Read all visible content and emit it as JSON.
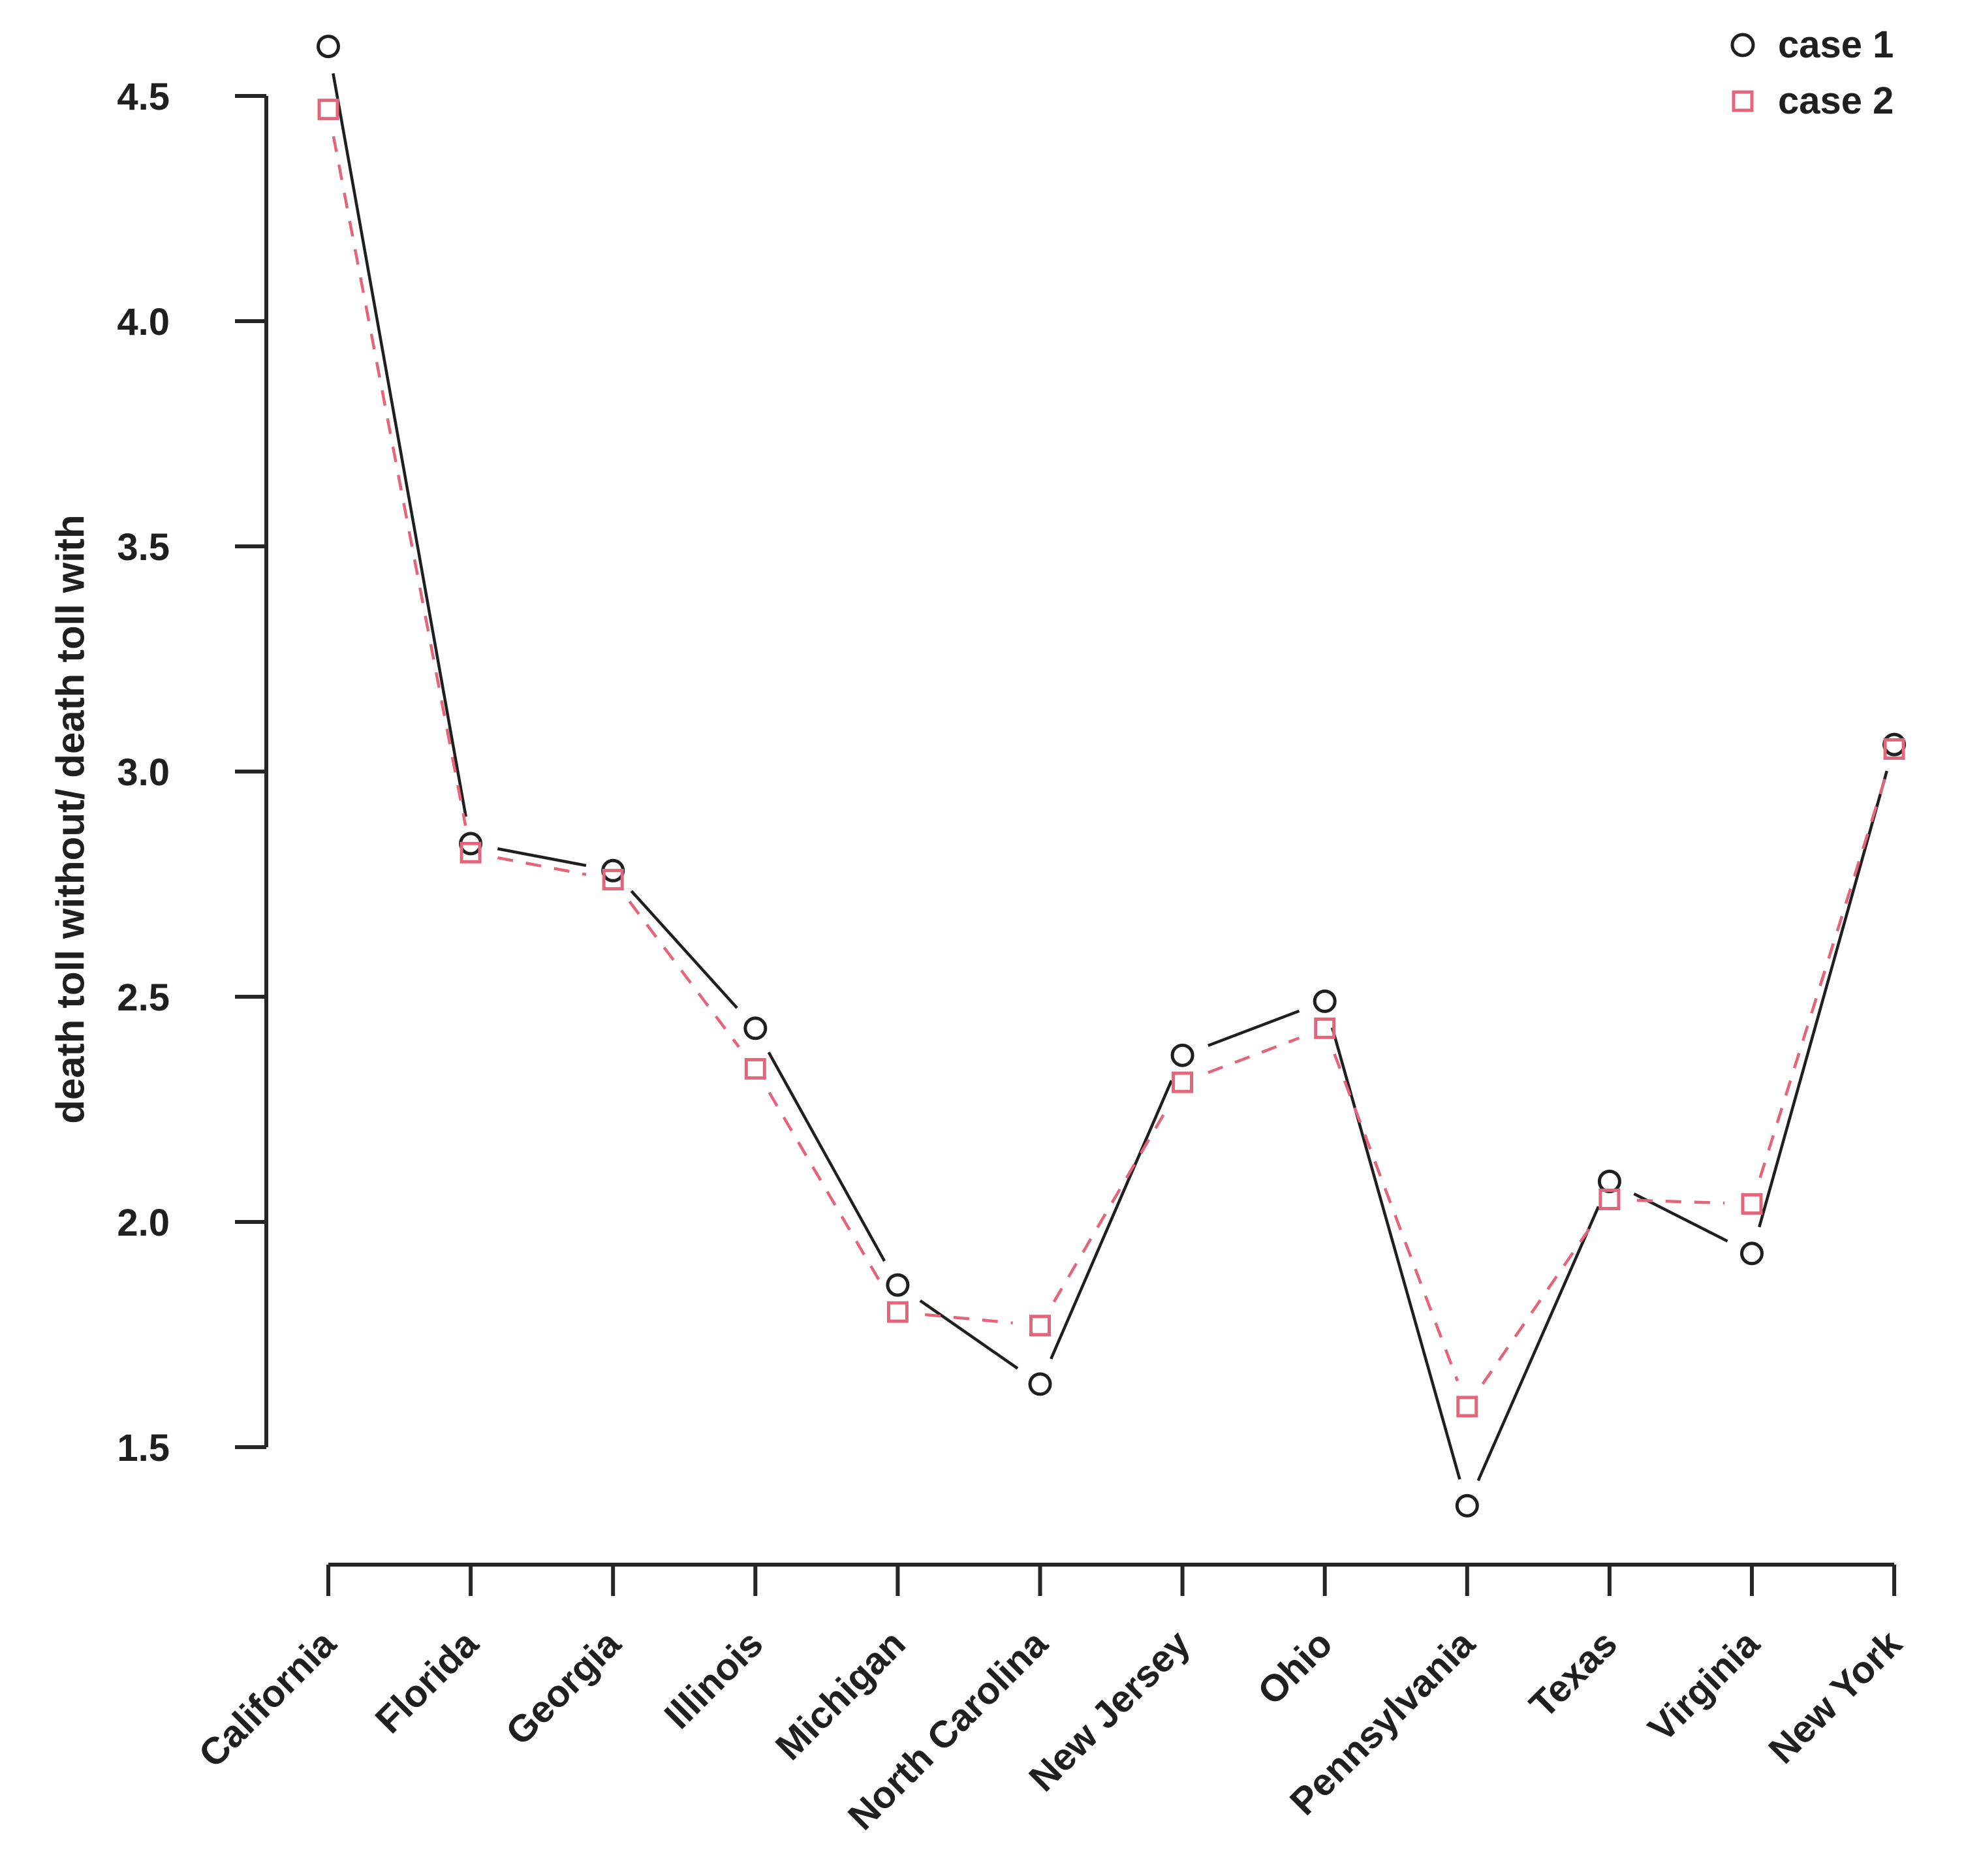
{
  "chart_data": {
    "type": "line",
    "title": "",
    "xlabel": "",
    "ylabel": "death toll without/ death toll with",
    "categories": [
      "California",
      "Florida",
      "Georgia",
      "Illinois",
      "Michigan",
      "North Carolina",
      "New Jersey",
      "Ohio",
      "Pennsylvania",
      "Texas",
      "Virginia",
      "New York"
    ],
    "series": [
      {
        "name": "case 1",
        "marker": "circle",
        "line_style": "solid",
        "color": "#1f1f1f",
        "values": [
          4.61,
          2.84,
          2.78,
          2.43,
          1.86,
          1.64,
          2.37,
          2.49,
          1.37,
          2.09,
          1.93,
          3.06
        ]
      },
      {
        "name": "case 2",
        "marker": "square",
        "line_style": "dashed",
        "color": "#e4657a",
        "values": [
          4.47,
          2.82,
          2.76,
          2.34,
          1.8,
          1.77,
          2.31,
          2.43,
          1.59,
          2.05,
          2.04,
          3.05
        ]
      }
    ],
    "yticks": [
      "1.5",
      "2.0",
      "2.5",
      "3.0",
      "3.5",
      "4.0",
      "4.5"
    ],
    "ylim": [
      1.3,
      4.7
    ],
    "grid": false,
    "legend_position": "top-right",
    "point_style": "open markers with line gaps (R type='b')"
  }
}
